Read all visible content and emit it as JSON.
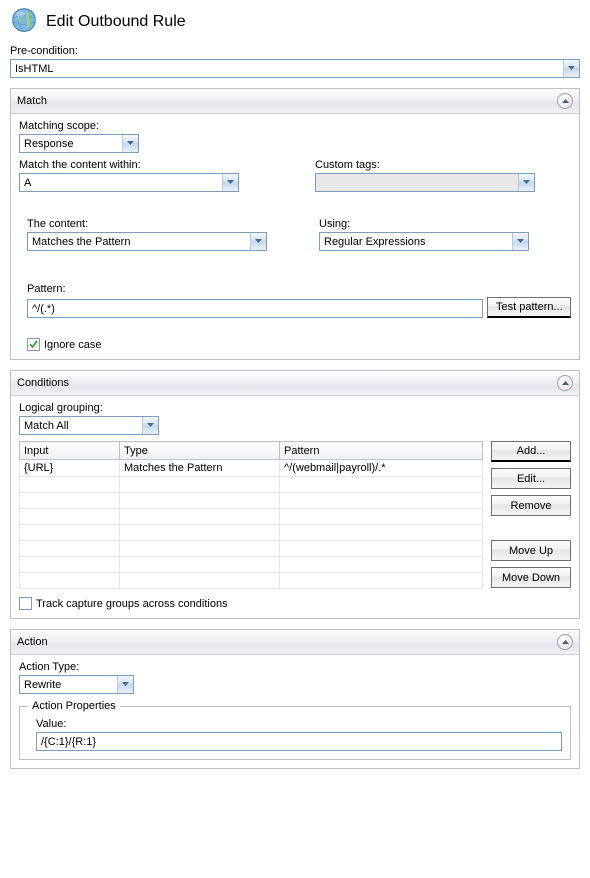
{
  "title": "Edit Outbound Rule",
  "precondition": {
    "label": "Pre-condition:",
    "value": "IsHTML"
  },
  "match": {
    "header": "Match",
    "scope": {
      "label": "Matching scope:",
      "value": "Response"
    },
    "within": {
      "label": "Match the content within:",
      "value": "A"
    },
    "custom": {
      "label": "Custom tags:",
      "value": ""
    },
    "content": {
      "label": "The content:",
      "value": "Matches the Pattern"
    },
    "using": {
      "label": "Using:",
      "value": "Regular Expressions"
    },
    "pattern": {
      "label": "Pattern:",
      "value": "^/(.*)"
    },
    "testBtn": "Test pattern...",
    "ignoreCase": {
      "label": "Ignore case",
      "checked": true
    }
  },
  "conditions": {
    "header": "Conditions",
    "grouping": {
      "label": "Logical grouping:",
      "value": "Match All"
    },
    "columns": [
      "Input",
      "Type",
      "Pattern"
    ],
    "rows": [
      [
        "{URL}",
        "Matches the Pattern",
        "^/(webmail|payroll)/.*"
      ],
      [
        "",
        "",
        ""
      ],
      [
        "",
        "",
        ""
      ],
      [
        "",
        "",
        ""
      ],
      [
        "",
        "",
        ""
      ],
      [
        "",
        "",
        ""
      ],
      [
        "",
        "",
        ""
      ],
      [
        "",
        "",
        ""
      ]
    ],
    "buttons": {
      "add": "Add...",
      "edit": "Edit...",
      "remove": "Remove",
      "up": "Move Up",
      "down": "Move Down"
    },
    "track": {
      "label": "Track capture groups across conditions",
      "checked": false
    }
  },
  "action": {
    "header": "Action",
    "type": {
      "label": "Action Type:",
      "value": "Rewrite"
    },
    "propsHeader": "Action Properties",
    "value": {
      "label": "Value:",
      "value": "/{C:1}/{R:1}"
    }
  }
}
